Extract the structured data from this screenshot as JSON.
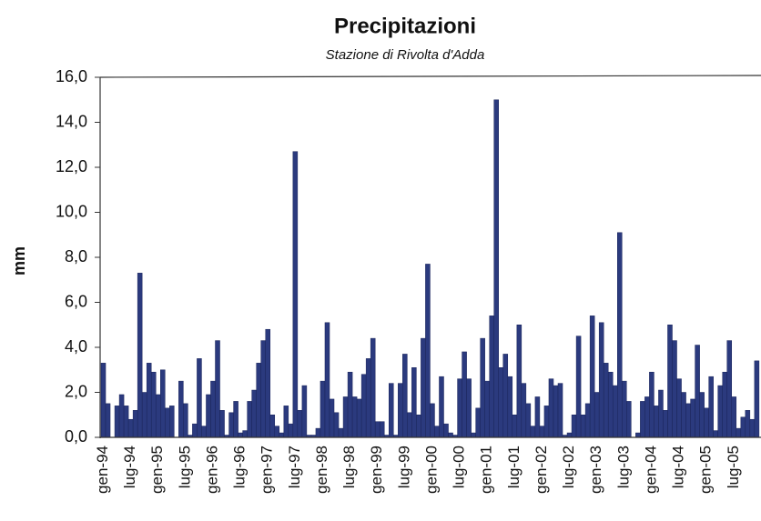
{
  "chart_data": {
    "type": "bar",
    "title": "Precipitazioni",
    "subtitle": "Stazione di Rivolta d'Adda",
    "y_label": "mm",
    "color": "#2b3a7e",
    "categories": [
      "gen-94",
      null,
      null,
      null,
      null,
      null,
      "lug-94",
      null,
      null,
      null,
      null,
      null,
      "gen-95",
      null,
      null,
      null,
      null,
      null,
      "lug-95",
      null,
      null,
      null,
      null,
      null,
      "gen-96",
      null,
      null,
      null,
      null,
      null,
      "lug-96",
      null,
      null,
      null,
      null,
      null,
      "gen-97",
      null,
      null,
      null,
      null,
      null,
      "lug-97",
      null,
      null,
      null,
      null,
      null,
      "gen-98",
      null,
      null,
      null,
      null,
      null,
      "lug-98",
      null,
      null,
      null,
      null,
      null,
      "gen-99",
      null,
      null,
      null,
      null,
      null,
      "lug-99",
      null,
      null,
      null,
      null,
      null,
      "gen-00",
      null,
      null,
      null,
      null,
      null,
      "lug-00",
      null,
      null,
      null,
      null,
      null,
      "gen-01",
      null,
      null,
      null,
      null,
      null,
      "lug-01",
      null,
      null,
      null,
      null,
      null,
      "gen-02",
      null,
      null,
      null,
      null,
      null,
      "lug-02",
      null,
      null,
      null,
      null,
      null,
      "gen-03",
      null,
      null,
      null,
      null,
      null,
      "lug-03",
      null,
      null,
      null,
      null,
      null,
      "gen-04",
      null,
      null,
      null,
      null,
      null,
      "lug-04",
      null,
      null,
      null,
      null,
      null,
      "gen-05",
      null,
      null,
      null,
      null,
      null,
      "lug-05",
      null,
      null,
      null,
      null,
      null
    ],
    "values": [
      3.3,
      1.5,
      0.0,
      1.4,
      1.9,
      1.4,
      0.8,
      1.2,
      7.3,
      2.0,
      3.3,
      2.9,
      1.9,
      3.0,
      1.3,
      1.4,
      0.0,
      2.5,
      1.5,
      0.1,
      0.6,
      3.5,
      0.5,
      1.9,
      2.5,
      4.3,
      1.2,
      0.1,
      1.1,
      1.6,
      0.2,
      0.3,
      1.6,
      2.1,
      3.3,
      4.3,
      4.8,
      1.0,
      0.5,
      0.2,
      1.4,
      0.6,
      12.7,
      1.2,
      2.3,
      0.1,
      0.1,
      0.4,
      2.5,
      5.1,
      1.7,
      1.1,
      0.4,
      1.8,
      2.9,
      1.8,
      1.7,
      2.8,
      3.5,
      4.4,
      0.7,
      0.7,
      0.1,
      2.4,
      0.1,
      2.4,
      3.7,
      1.1,
      3.1,
      1.0,
      4.4,
      7.7,
      1.5,
      0.5,
      2.7,
      0.6,
      0.2,
      0.1,
      2.6,
      3.8,
      2.6,
      0.2,
      1.3,
      4.4,
      2.5,
      5.4,
      15.0,
      3.1,
      3.7,
      2.7,
      1.0,
      5.0,
      2.4,
      1.5,
      0.5,
      1.8,
      0.5,
      1.4,
      2.6,
      2.3,
      2.4,
      0.1,
      0.2,
      1.0,
      4.5,
      1.0,
      1.5,
      5.4,
      2.0,
      5.1,
      3.3,
      2.9,
      2.3,
      9.1,
      2.5,
      1.6,
      0.0,
      0.2,
      1.6,
      1.8,
      2.9,
      1.4,
      2.1,
      1.2,
      5.0,
      4.3,
      2.6,
      2.0,
      1.5,
      1.7,
      4.1,
      2.0,
      1.3,
      2.7,
      0.3,
      2.3,
      2.9,
      4.3,
      1.8,
      0.4,
      0.9,
      1.2,
      0.8,
      3.4
    ],
    "ylim": [
      0,
      16
    ],
    "yticks": [
      {
        "value": 0,
        "label": "0,0"
      },
      {
        "value": 2,
        "label": "2,0"
      },
      {
        "value": 4,
        "label": "4,0"
      },
      {
        "value": 6,
        "label": "6,0"
      },
      {
        "value": 8,
        "label": "8,0"
      },
      {
        "value": 10,
        "label": "10,0"
      },
      {
        "value": 12,
        "label": "12,0"
      },
      {
        "value": 14,
        "label": "14,0"
      },
      {
        "value": 16,
        "label": "16,0"
      }
    ]
  }
}
